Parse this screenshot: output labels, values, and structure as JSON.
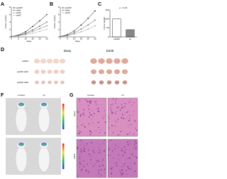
{
  "chart_data": [
    {
      "type": "line",
      "panel": "A",
      "xlabel": "Days",
      "ylabel": "Tumor volume",
      "x": [
        0,
        5,
        10,
        15,
        20,
        25
      ],
      "xlim": [
        0,
        25
      ],
      "xticks": [
        0,
        5,
        10,
        15,
        20,
        25
      ],
      "ylim": [
        0,
        8
      ],
      "yticks": [
        0,
        2,
        4,
        6,
        8
      ],
      "series": [
        {
          "name": "pGIPZ",
          "color": "#000000",
          "values": [
            0.1,
            0.5,
            1.4,
            2.8,
            4.3,
            6.0
          ]
        },
        {
          "name": "sh#1",
          "color": "#444444",
          "values": [
            0.1,
            0.4,
            1.0,
            1.9,
            2.9,
            4.0
          ]
        },
        {
          "name": "sh#2",
          "color": "#777777",
          "values": [
            0.1,
            0.3,
            0.8,
            1.5,
            2.2,
            3.0
          ]
        },
        {
          "name": "sh#3",
          "color": "#aaaaaa",
          "values": [
            0.1,
            0.3,
            0.6,
            1.0,
            1.5,
            2.0
          ]
        }
      ]
    },
    {
      "type": "line",
      "panel": "B",
      "xlabel": "Days",
      "ylabel": "Tumor volume",
      "x": [
        0,
        5,
        10,
        15,
        20,
        25
      ],
      "xlim": [
        0,
        25
      ],
      "xticks": [
        0,
        5,
        10,
        15,
        20,
        25
      ],
      "ylim": [
        0,
        8
      ],
      "yticks": [
        0,
        2,
        4,
        6,
        8
      ],
      "series": [
        {
          "name": "pGIPZ",
          "color": "#000000",
          "values": [
            0.1,
            0.6,
            1.6,
            3.2,
            5.0,
            7.0
          ]
        },
        {
          "name": "sh#1",
          "color": "#555555",
          "values": [
            0.1,
            0.4,
            1.1,
            2.1,
            3.2,
            4.5
          ]
        },
        {
          "name": "sh#2",
          "color": "#999999",
          "values": [
            0.1,
            0.3,
            0.8,
            1.4,
            2.1,
            3.0
          ]
        }
      ]
    },
    {
      "type": "bar",
      "panel": "C",
      "ylabel": "Tumor weight",
      "annotation": "p < 0.01",
      "categories": [
        "pGIPZ",
        "sh"
      ],
      "values": [
        100,
        40
      ],
      "colors": [
        "#ffffff",
        "#888888"
      ],
      "ylim": [
        0,
        150
      ],
      "yticks": [
        0,
        50,
        100,
        150
      ]
    }
  ],
  "figure": {
    "d": {
      "panel": "D",
      "columns": [
        "Daoy",
        "D425"
      ],
      "rows": [
        "pGIPZ",
        "pGIPZ sh#1",
        "pGIPZ sh#2"
      ]
    },
    "f": {
      "panel": "F",
      "columns": [
        "Control",
        "sh"
      ]
    },
    "g": {
      "panel": "G",
      "columns": [
        "Control",
        "sh"
      ],
      "rows": [
        "Daoy",
        "D425"
      ]
    }
  }
}
